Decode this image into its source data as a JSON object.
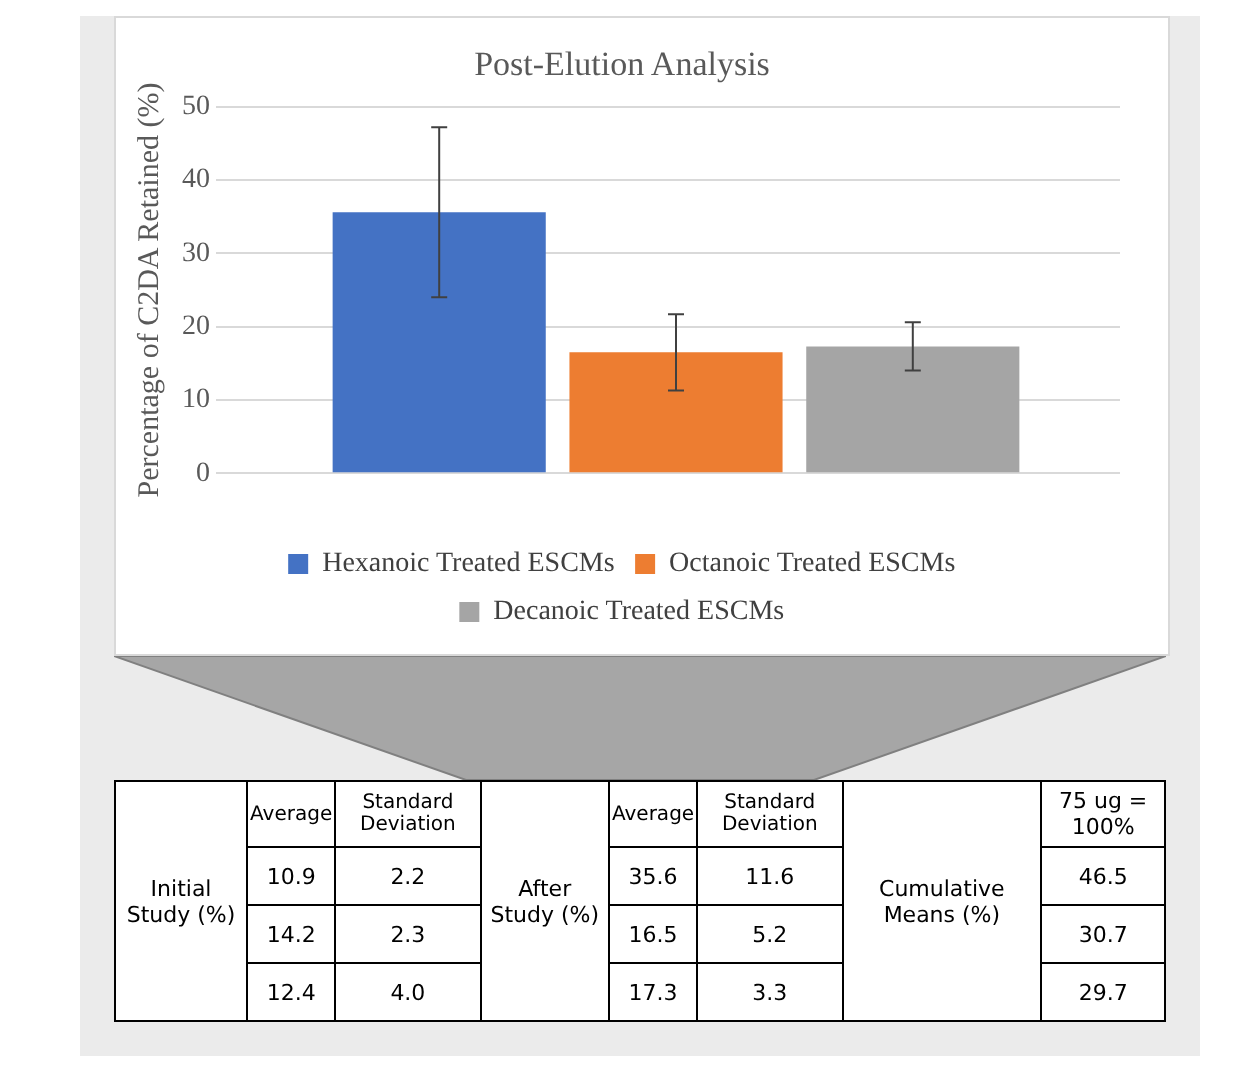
{
  "chart_data": [
    {
      "type": "bar",
      "title": "Post-Elution Analysis",
      "ylabel": "Percentage of C2DA Retained (%)",
      "categories": [
        null
      ],
      "series": [
        {
          "name": "Hexanoic Treated ESCMs",
          "color": "#4472c4",
          "values": [
            35.6
          ],
          "errors": [
            11.6
          ]
        },
        {
          "name": "Octanoic Treated ESCMs",
          "color": "#ed7d31",
          "values": [
            16.5
          ],
          "errors": [
            5.2
          ]
        },
        {
          "name": "Decanoic Treated ESCMs",
          "color": "#a5a5a5",
          "values": [
            17.3
          ],
          "errors": [
            3.3
          ]
        }
      ],
      "ylim": [
        0,
        50
      ],
      "yticks": [
        0,
        10,
        20,
        30,
        40,
        50
      ],
      "grid": "y",
      "legend": "bottom"
    },
    {
      "type": "other",
      "annotations": [
        "Initial Study (%)",
        "Average",
        "Standard Deviation",
        "After Study (%)",
        "Average",
        "Standard Deviation",
        "Cumulative Means (%)",
        "75 ug = 100%",
        "10.9",
        "2.2",
        "35.6",
        "11.6",
        "46.5",
        "14.2",
        "2.3",
        "16.5",
        "5.2",
        "30.7",
        "12.4",
        "4.0",
        "17.3",
        "3.3",
        "29.7"
      ]
    }
  ]
}
